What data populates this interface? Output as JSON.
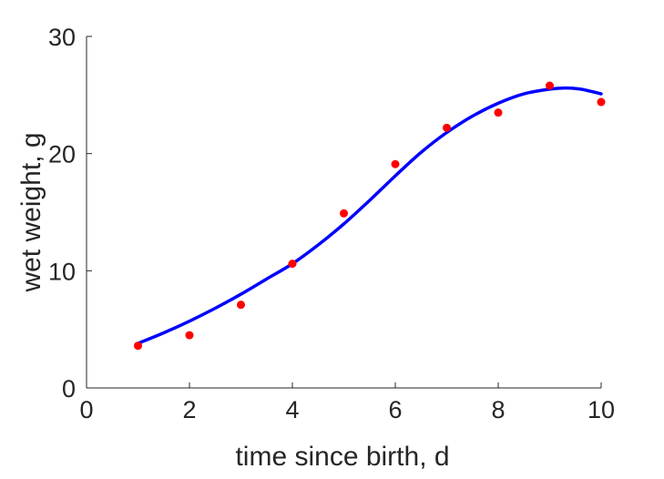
{
  "chart_data": {
    "type": "scatter",
    "title": "",
    "xlabel": "time since birth, d",
    "ylabel": "wet weight, g",
    "xlim": [
      0,
      10
    ],
    "ylim": [
      0,
      30
    ],
    "xticks": [
      0,
      2,
      4,
      6,
      8,
      10
    ],
    "yticks": [
      0,
      10,
      20,
      30
    ],
    "xtick_labels": [
      "0",
      "2",
      "4",
      "6",
      "8",
      "10"
    ],
    "ytick_labels": [
      "0",
      "10",
      "20",
      "30"
    ],
    "grid": false,
    "series": [
      {
        "kind": "scatter",
        "color": "#ff0000",
        "x": [
          1,
          2,
          3,
          4,
          5,
          6,
          7,
          8,
          9,
          10
        ],
        "y": [
          3.6,
          4.5,
          7.1,
          10.6,
          14.9,
          19.1,
          22.2,
          23.5,
          25.8,
          24.4
        ]
      },
      {
        "kind": "line",
        "color": "#0000ff",
        "x": [
          1.0,
          1.5,
          2.0,
          2.5,
          3.0,
          3.5,
          4.0,
          4.5,
          5.0,
          5.5,
          6.0,
          6.5,
          7.0,
          7.5,
          8.0,
          8.5,
          9.0,
          9.3,
          9.6,
          10.0
        ],
        "y": [
          3.8,
          4.7,
          5.7,
          6.8,
          8.0,
          9.3,
          10.6,
          12.2,
          14.0,
          16.0,
          18.1,
          20.1,
          21.8,
          23.2,
          24.3,
          25.1,
          25.5,
          25.6,
          25.5,
          25.1
        ]
      }
    ]
  }
}
